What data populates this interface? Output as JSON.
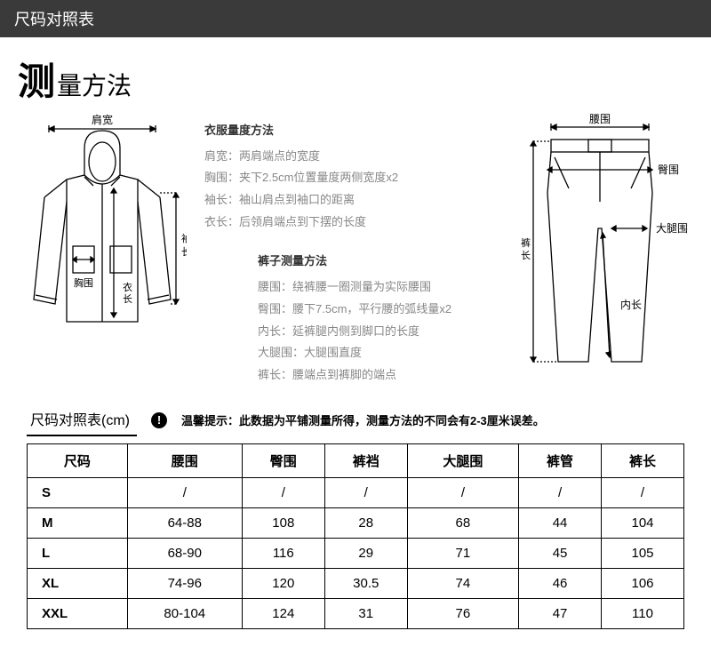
{
  "header": {
    "title": "尺码对照表"
  },
  "mainTitle": {
    "big": "测",
    "rest": "量方法"
  },
  "jacketLabels": {
    "shoulder": "肩宽",
    "chest": "胸围",
    "length": "衣长",
    "sleeve": "袖长"
  },
  "pantsLabels": {
    "waist": "腰围",
    "hip": "臀围",
    "thigh": "大腿围",
    "inseam": "内长",
    "length": "裤长"
  },
  "jacketMethod": {
    "title": "衣服量度方法",
    "lines": [
      "肩宽：两肩端点的宽度",
      "胸围：夹下2.5cm位置量度两侧宽度x2",
      "袖长：袖山肩点到袖口的距离",
      "衣长：后领肩端点到下摆的长度"
    ]
  },
  "pantsMethod": {
    "title": "裤子测量方法",
    "lines": [
      "腰围：绕裤腰一圈测量为实际腰围",
      "臀围：腰下7.5cm，平行腰的弧线量x2",
      "内长：延裤腿内侧到脚口的长度",
      "大腿围：大腿围直度",
      "裤长：腰端点到裤脚的端点"
    ]
  },
  "table": {
    "title": "尺码对照表(cm)",
    "tip": "温馨提示：此数据为平铺测量所得，测量方法的不同会有2-3厘米误差。",
    "columns": [
      "尺码",
      "腰围",
      "臀围",
      "裤裆",
      "大腿围",
      "裤管",
      "裤长"
    ],
    "rows": [
      [
        "S",
        "/",
        "/",
        "/",
        "/",
        "/",
        "/"
      ],
      [
        "M",
        "64-88",
        "108",
        "28",
        "68",
        "44",
        "104"
      ],
      [
        "L",
        "68-90",
        "116",
        "29",
        "71",
        "45",
        "105"
      ],
      [
        "XL",
        "74-96",
        "120",
        "30.5",
        "74",
        "46",
        "106"
      ],
      [
        "XXL",
        "80-104",
        "124",
        "31",
        "76",
        "47",
        "110"
      ]
    ]
  },
  "colors": {
    "headerBg": "#3a3a3a",
    "text": "#000",
    "muted": "#888",
    "line": "#000"
  }
}
